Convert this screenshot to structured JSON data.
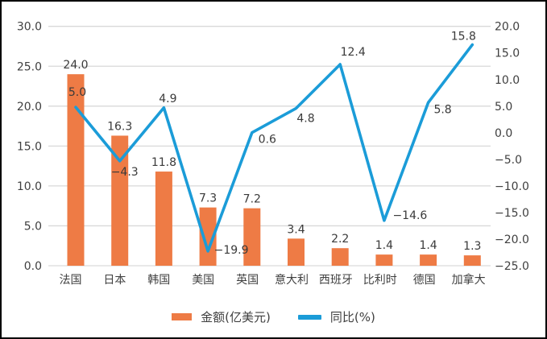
{
  "colors": {
    "bar": "#EE7B45",
    "line": "#1B9CD8",
    "grid": "#D9D9D9",
    "text": "#3F3F3F",
    "figure_border": "#000000",
    "background": "#FFFFFF"
  },
  "chart_data": {
    "type": "combo_bar_line",
    "title": "",
    "categories": [
      "法国",
      "日本",
      "韩国",
      "美国",
      "英国",
      "意大利",
      "西班牙",
      "比利时",
      "德国",
      "加拿大"
    ],
    "series": [
      {
        "name": "金额(亿美元)",
        "type": "bar",
        "axis": "left",
        "color": "#EE7B45",
        "values": [
          24.0,
          16.3,
          11.8,
          7.3,
          7.2,
          3.4,
          2.2,
          1.4,
          1.4,
          1.3
        ]
      },
      {
        "name": "同比(%)",
        "type": "line",
        "axis": "right",
        "color": "#1B9CD8",
        "values": [
          5.0,
          -4.3,
          4.9,
          -19.9,
          0.6,
          4.8,
          12.4,
          -14.6,
          5.8,
          15.8
        ]
      }
    ],
    "left_axis": {
      "min": 0,
      "max": 30,
      "step": 5,
      "tick_labels": [
        "30.0",
        "25.0",
        "20.0",
        "15.0",
        "10.0",
        "5.0",
        "0.0"
      ]
    },
    "right_axis": {
      "min": -25,
      "max": 20,
      "step": 5,
      "tick_labels": [
        "20.0",
        "15.0",
        "10.0",
        "5.0",
        "0.0",
        "−5.0",
        "−10.0",
        "−15.0",
        "−20.0",
        "−25.0"
      ]
    },
    "grid": true,
    "legend_position": "bottom",
    "data_labels_shown": true
  }
}
